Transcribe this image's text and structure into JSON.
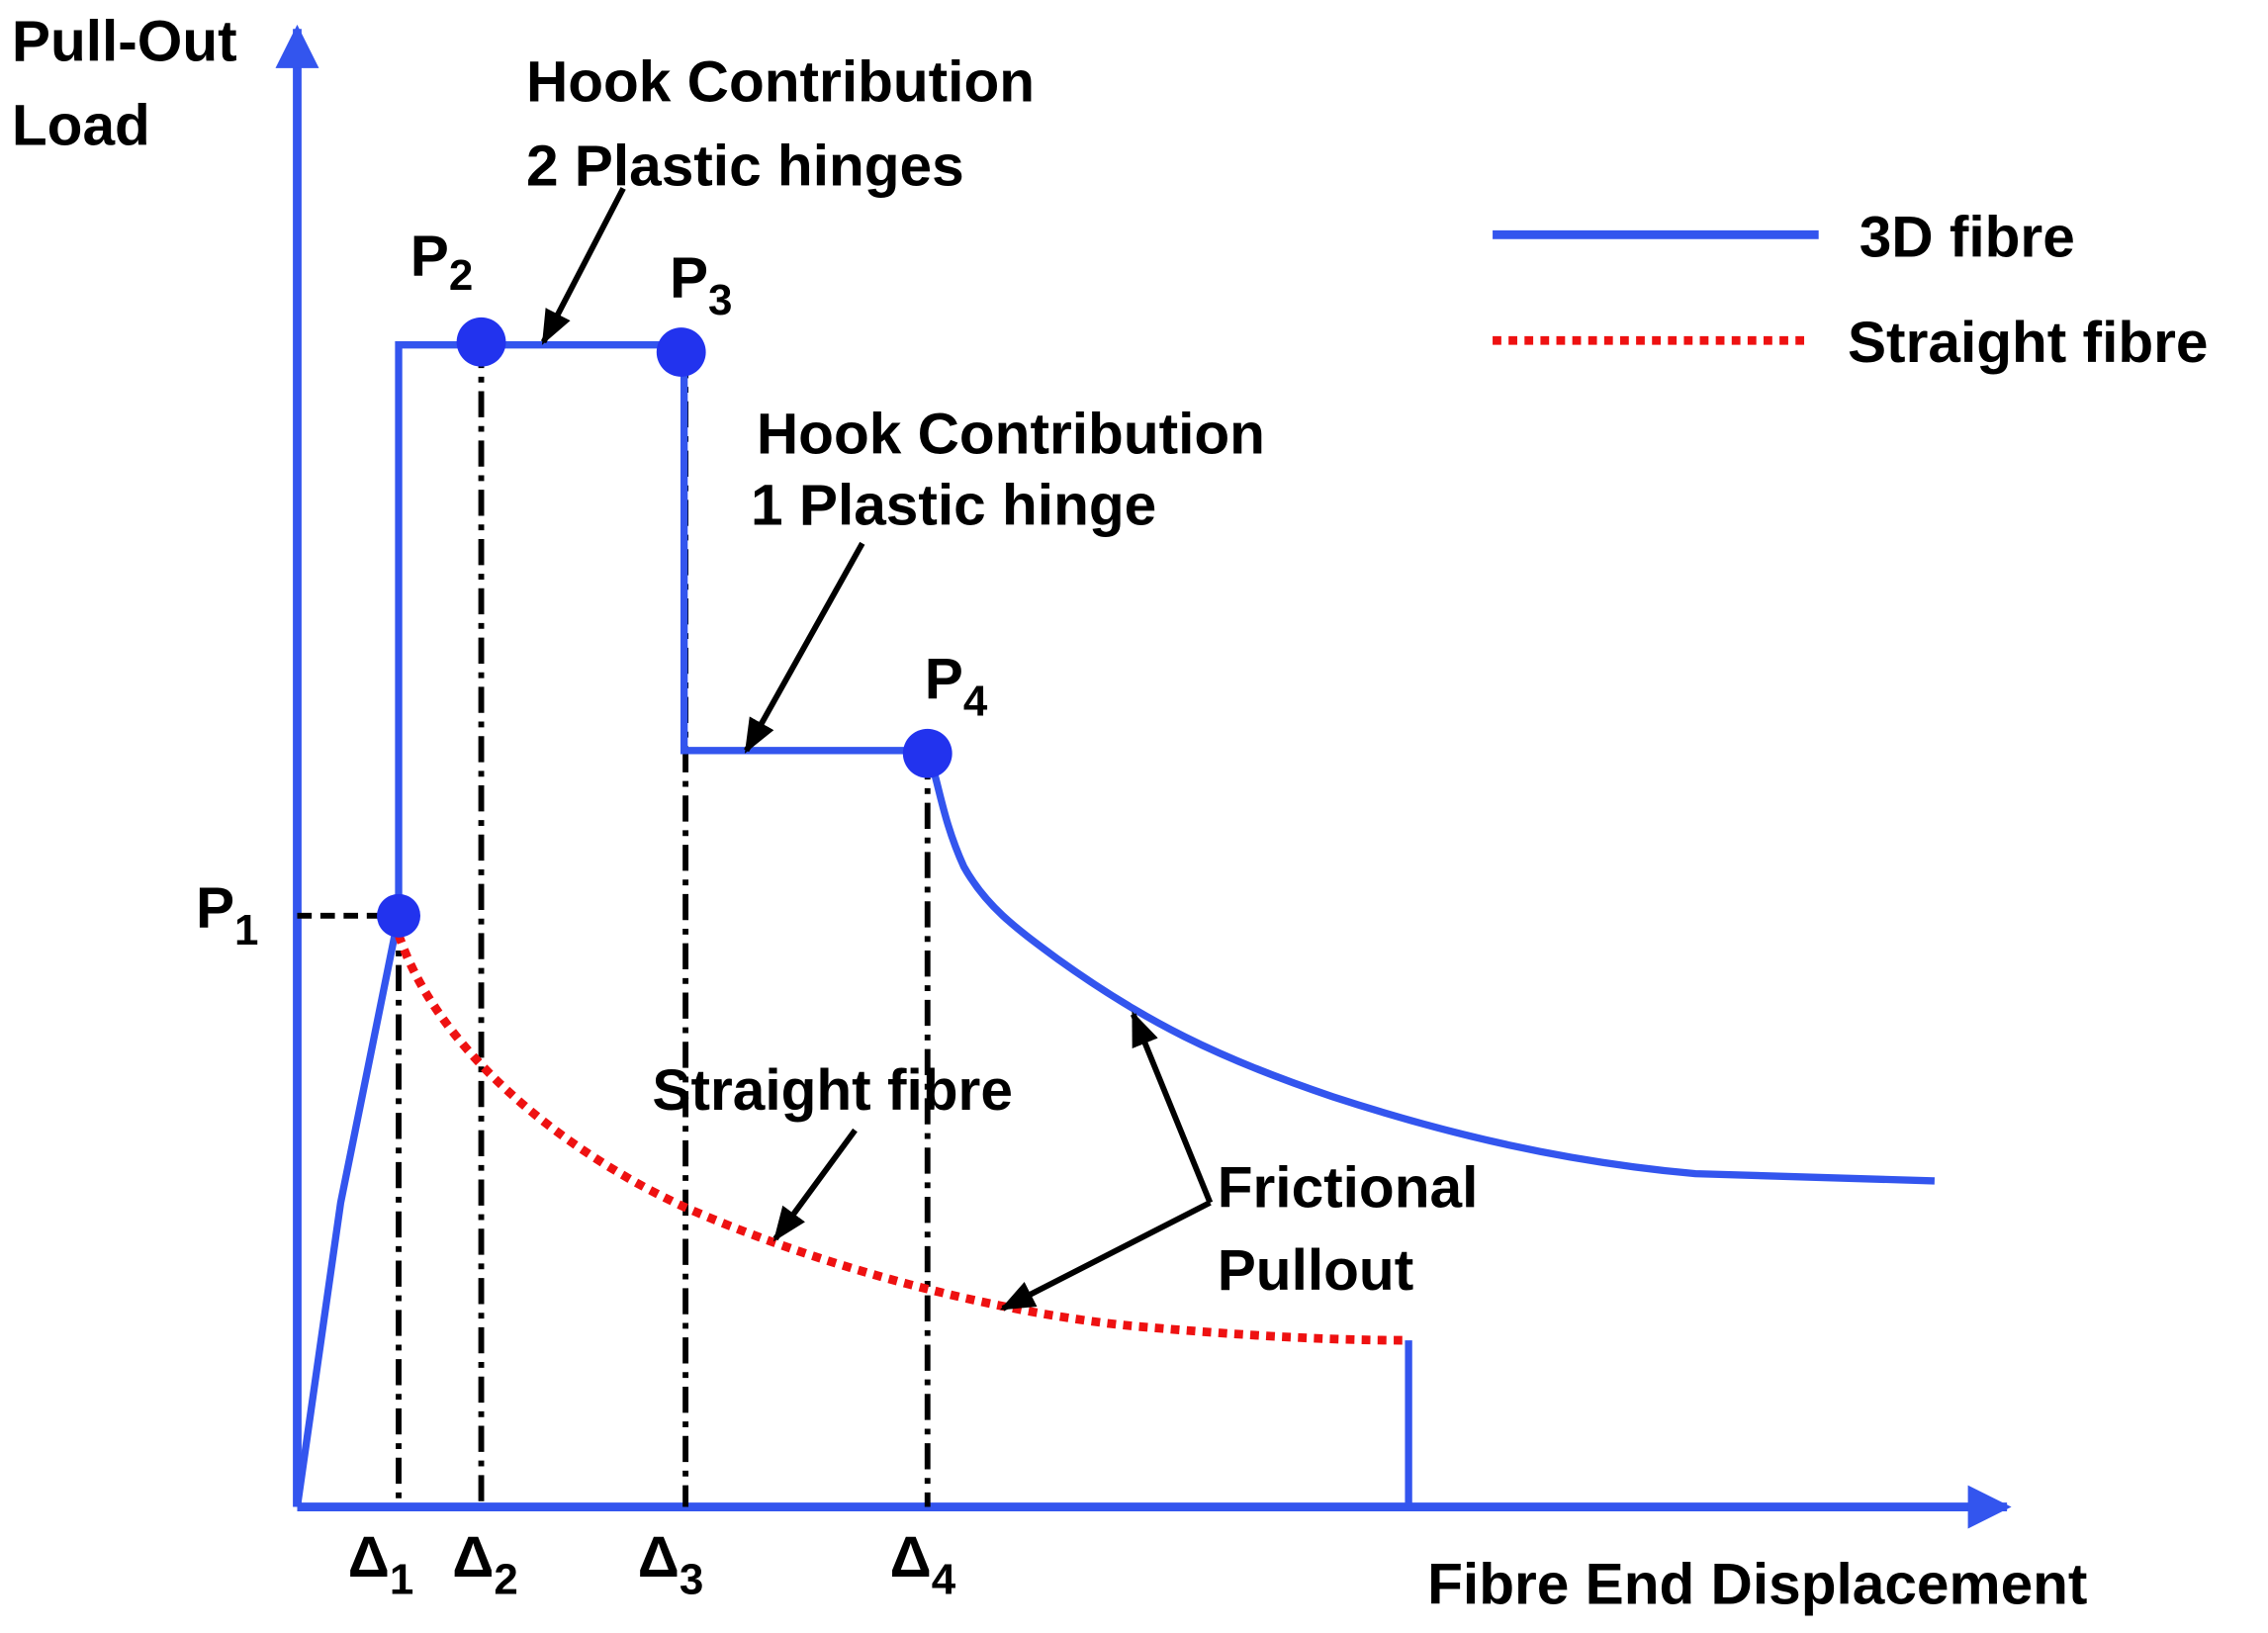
{
  "axes": {
    "y_label_lines": [
      "Pull-Out",
      "Load"
    ],
    "x_label": "Fibre End Displacement"
  },
  "points": [
    {
      "symbol": "P",
      "subscript": "1"
    },
    {
      "symbol": "P",
      "subscript": "2"
    },
    {
      "symbol": "P",
      "subscript": "3"
    },
    {
      "symbol": "P",
      "subscript": "4"
    }
  ],
  "displacements": [
    {
      "symbol": "Δ",
      "subscript": "1"
    },
    {
      "symbol": "Δ",
      "subscript": "2"
    },
    {
      "symbol": "Δ",
      "subscript": "3"
    },
    {
      "symbol": "Δ",
      "subscript": "4"
    }
  ],
  "annotations": [
    {
      "lines": [
        "Hook Contribution",
        "2 Plastic hinges"
      ]
    },
    {
      "lines": [
        "Hook Contribution",
        "1 Plastic hinge"
      ]
    },
    {
      "lines": [
        "Straight fibre"
      ]
    },
    {
      "lines": [
        "Frictional",
        "Pullout"
      ]
    }
  ],
  "legend": [
    {
      "label": "3D fibre",
      "color": "#3355ee"
    },
    {
      "label": "Straight fibre",
      "color": "#ee1111"
    }
  ]
}
